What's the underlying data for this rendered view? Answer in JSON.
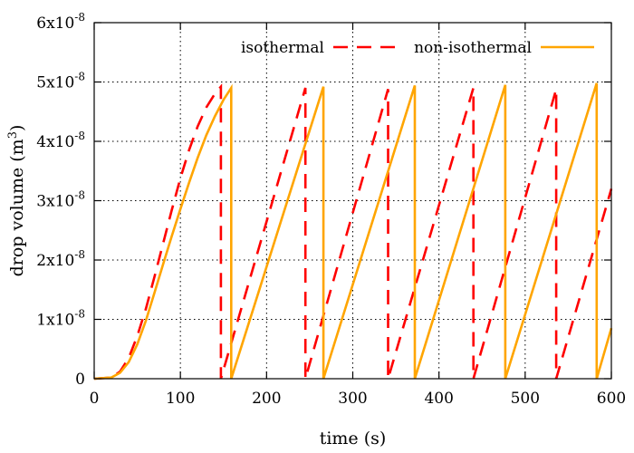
{
  "chart_data": {
    "type": "line",
    "title": "",
    "xlabel": "time (s)",
    "ylabel_prefix": "drop volume (m",
    "ylabel_sup": "3",
    "ylabel_suffix": ")",
    "xlim": [
      0,
      600
    ],
    "ylim": [
      0,
      6e-08
    ],
    "grid": true,
    "legend_position": "top-right",
    "x_ticks": [
      0,
      100,
      200,
      300,
      400,
      500,
      600
    ],
    "x_tick_labels": [
      "0",
      "100",
      "200",
      "300",
      "400",
      "500",
      "600"
    ],
    "y_ticks": [
      0,
      1e-08,
      2e-08,
      3e-08,
      4e-08,
      5e-08,
      6e-08
    ],
    "y_tick_labels": [
      {
        "mantissa": "0",
        "exponent": ""
      },
      {
        "mantissa": "1x10",
        "exponent": "-8"
      },
      {
        "mantissa": "2x10",
        "exponent": "-8"
      },
      {
        "mantissa": "3x10",
        "exponent": "-8"
      },
      {
        "mantissa": "4x10",
        "exponent": "-8"
      },
      {
        "mantissa": "5x10",
        "exponent": "-8"
      },
      {
        "mantissa": "6x10",
        "exponent": "-8"
      }
    ],
    "series": [
      {
        "name": "isothermal",
        "color": "#ff0000",
        "style": "dashed",
        "points": [
          [
            0,
            0
          ],
          [
            20,
            2e-10
          ],
          [
            30,
            1.2e-09
          ],
          [
            40,
            3.5e-09
          ],
          [
            50,
            7.2e-09
          ],
          [
            60,
            1.18e-08
          ],
          [
            70,
            1.72e-08
          ],
          [
            80,
            2.28e-08
          ],
          [
            90,
            2.84e-08
          ],
          [
            100,
            3.38e-08
          ],
          [
            110,
            3.85e-08
          ],
          [
            120,
            4.25e-08
          ],
          [
            130,
            4.57e-08
          ],
          [
            140,
            4.8e-08
          ],
          [
            147,
            4.92e-08
          ],
          [
            147,
            0
          ],
          [
            245,
            4.9e-08
          ],
          [
            245,
            0
          ],
          [
            341,
            4.88e-08
          ],
          [
            341,
            0
          ],
          [
            440,
            4.9e-08
          ],
          [
            440,
            0
          ],
          [
            536,
            4.88e-08
          ],
          [
            536,
            0
          ],
          [
            600,
            3.2e-08
          ]
        ]
      },
      {
        "name": "non-isothermal",
        "color": "#ffa500",
        "style": "solid",
        "points": [
          [
            0,
            0
          ],
          [
            20,
            2e-10
          ],
          [
            30,
            1e-09
          ],
          [
            40,
            2.8e-09
          ],
          [
            50,
            5.8e-09
          ],
          [
            60,
            9.8e-09
          ],
          [
            70,
            1.45e-08
          ],
          [
            80,
            1.93e-08
          ],
          [
            90,
            2.4e-08
          ],
          [
            100,
            2.86e-08
          ],
          [
            110,
            3.3e-08
          ],
          [
            120,
            3.72e-08
          ],
          [
            130,
            4.1e-08
          ],
          [
            140,
            4.42e-08
          ],
          [
            150,
            4.7e-08
          ],
          [
            159,
            4.9e-08
          ],
          [
            159,
            0
          ],
          [
            266,
            4.92e-08
          ],
          [
            266,
            0
          ],
          [
            372,
            4.94e-08
          ],
          [
            372,
            0
          ],
          [
            477,
            4.95e-08
          ],
          [
            477,
            0
          ],
          [
            583,
            4.98e-08
          ],
          [
            583,
            0
          ],
          [
            600,
            8.5e-09
          ]
        ]
      }
    ]
  }
}
